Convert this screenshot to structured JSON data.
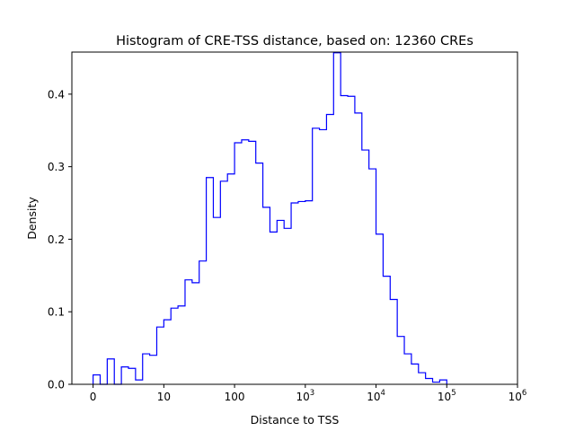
{
  "chart_data": {
    "type": "histogram",
    "title": "Histogram of CRE-TSS distance, based on: 12360 CREs",
    "xlabel": "Distance to TSS",
    "ylabel": "Density",
    "x_scale": "symlog",
    "xlim": [
      -0.3,
      6
    ],
    "ylim": [
      0,
      0.458
    ],
    "x_ticks": [
      {
        "value": 0,
        "label": "0"
      },
      {
        "value": 1,
        "label": "10"
      },
      {
        "value": 2,
        "label": "100"
      },
      {
        "value": 3,
        "label": "10",
        "exp": "3"
      },
      {
        "value": 4,
        "label": "10",
        "exp": "4"
      },
      {
        "value": 5,
        "label": "10",
        "exp": "5"
      },
      {
        "value": 6,
        "label": "10",
        "exp": "6"
      }
    ],
    "y_ticks": [
      {
        "value": 0.0,
        "label": "0.0"
      },
      {
        "value": 0.1,
        "label": "0.1"
      },
      {
        "value": 0.2,
        "label": "0.2"
      },
      {
        "value": 0.3,
        "label": "0.3"
      },
      {
        "value": 0.4,
        "label": "0.4"
      }
    ],
    "bin_width": 0.1,
    "bin_start": 0,
    "densities": [
      0.013,
      0.0,
      0.035,
      0.0,
      0.024,
      0.022,
      0.006,
      0.042,
      0.04,
      0.079,
      0.089,
      0.105,
      0.108,
      0.144,
      0.14,
      0.17,
      0.285,
      0.23,
      0.28,
      0.29,
      0.333,
      0.337,
      0.335,
      0.305,
      0.244,
      0.21,
      0.226,
      0.215,
      0.25,
      0.252,
      0.253,
      0.353,
      0.351,
      0.372,
      0.457,
      0.398,
      0.397,
      0.374,
      0.323,
      0.297,
      0.207,
      0.149,
      0.117,
      0.066,
      0.042,
      0.028,
      0.016,
      0.008,
      0.003,
      0.006
    ],
    "line_color": "#0000ff"
  }
}
